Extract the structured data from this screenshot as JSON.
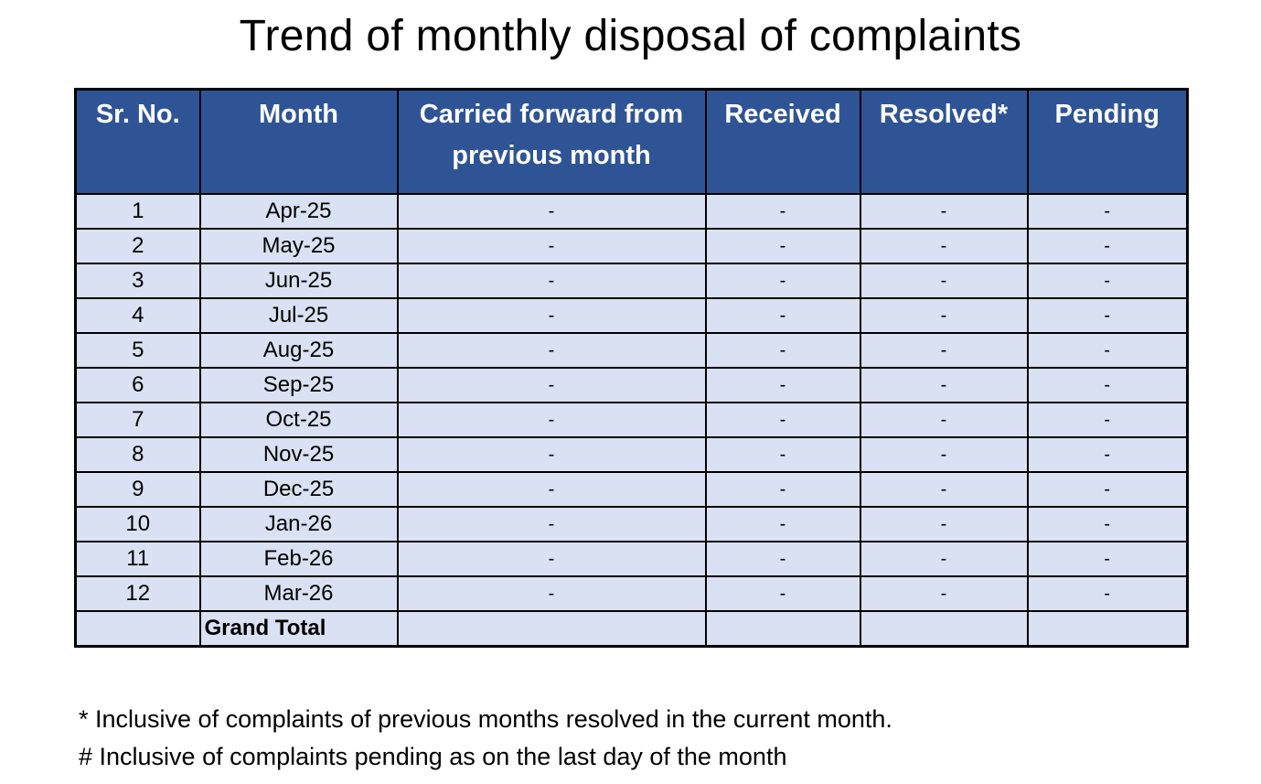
{
  "title": "Trend of monthly disposal of complaints",
  "table": {
    "headers": {
      "sr_no": "Sr. No.",
      "month": "Month",
      "carried_forward": "Carried forward from previous month",
      "received": "Received",
      "resolved": "Resolved*",
      "pending": "Pending"
    },
    "rows": [
      {
        "sr": "1",
        "month": "Apr-25",
        "carried": "-",
        "received": "-",
        "resolved": "-",
        "pending": "-"
      },
      {
        "sr": "2",
        "month": "May-25",
        "carried": "-",
        "received": "-",
        "resolved": "-",
        "pending": "-"
      },
      {
        "sr": "3",
        "month": "Jun-25",
        "carried": "-",
        "received": "-",
        "resolved": "-",
        "pending": "-"
      },
      {
        "sr": "4",
        "month": "Jul-25",
        "carried": "-",
        "received": "-",
        "resolved": "-",
        "pending": "-"
      },
      {
        "sr": "5",
        "month": "Aug-25",
        "carried": "-",
        "received": "-",
        "resolved": "-",
        "pending": "-"
      },
      {
        "sr": "6",
        "month": "Sep-25",
        "carried": "-",
        "received": "-",
        "resolved": "-",
        "pending": "-"
      },
      {
        "sr": "7",
        "month": "Oct-25",
        "carried": "-",
        "received": "-",
        "resolved": "-",
        "pending": "-"
      },
      {
        "sr": "8",
        "month": "Nov-25",
        "carried": "-",
        "received": "-",
        "resolved": "-",
        "pending": "-"
      },
      {
        "sr": "9",
        "month": "Dec-25",
        "carried": "-",
        "received": "-",
        "resolved": "-",
        "pending": "-"
      },
      {
        "sr": "10",
        "month": "Jan-26",
        "carried": "-",
        "received": "-",
        "resolved": "-",
        "pending": "-"
      },
      {
        "sr": "11",
        "month": "Feb-26",
        "carried": "-",
        "received": "-",
        "resolved": "-",
        "pending": "-"
      },
      {
        "sr": "12",
        "month": "Mar-26",
        "carried": "-",
        "received": "-",
        "resolved": "-",
        "pending": "-"
      }
    ],
    "total_label": "Grand Total"
  },
  "notes": [
    "* Inclusive of complaints of previous months resolved in the current month.",
    "# Inclusive of complaints pending as on the last day of the month"
  ],
  "colors": {
    "header_bg": "#2f5496",
    "header_text": "#ffffff",
    "row_bg": "#d9e1f2"
  }
}
